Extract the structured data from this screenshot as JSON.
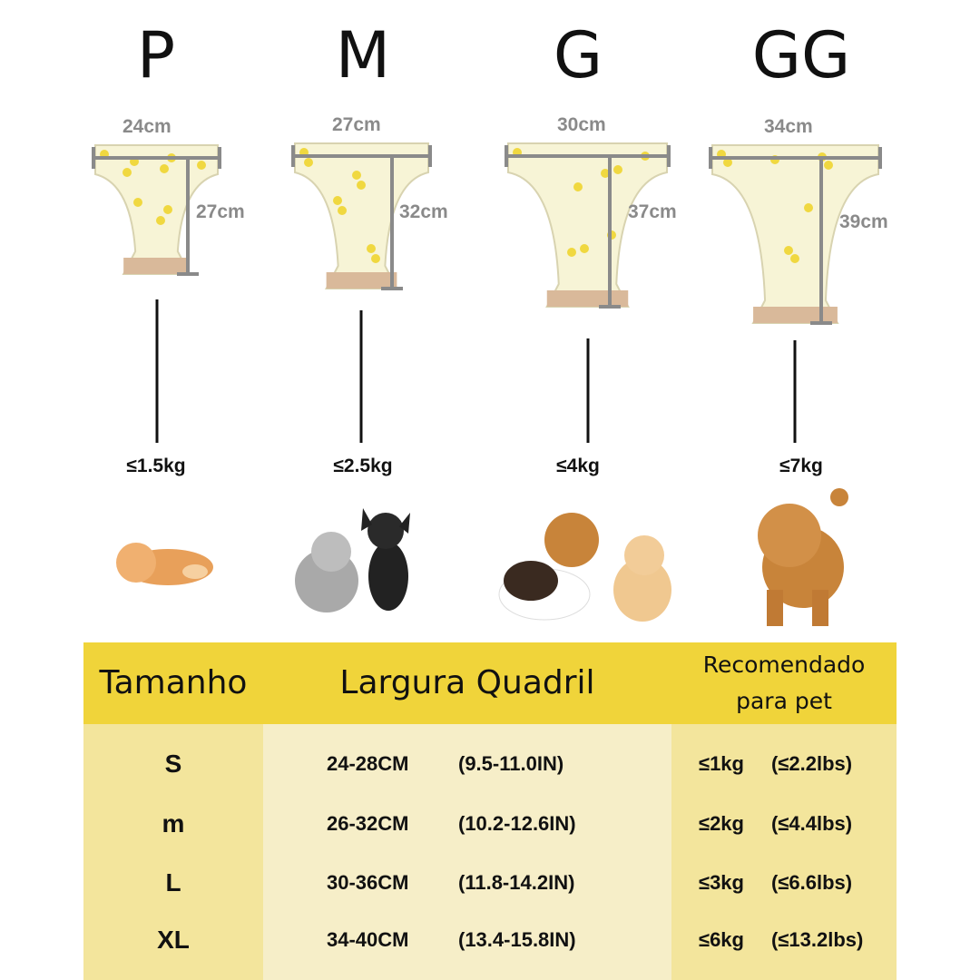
{
  "sizes": [
    {
      "label": "P",
      "width": "24cm",
      "height": "27cm",
      "weight": "≤1.5kg"
    },
    {
      "label": "M",
      "width": "27cm",
      "height": "32cm",
      "weight": "≤2.5kg"
    },
    {
      "label": "G",
      "width": "30cm",
      "height": "37cm",
      "weight": "≤4kg"
    },
    {
      "label": "GG",
      "width": "34cm",
      "height": "39cm",
      "weight": "≤7kg"
    }
  ],
  "table": {
    "header": [
      "Tamanho",
      "Largura Quadril",
      "Recomendado para pet"
    ],
    "rows": [
      [
        "S",
        "24-28CM",
        "(9.5-11.0IN)",
        "≤1kg",
        "(≤2.2lbs)"
      ],
      [
        "m",
        "26-32CM",
        "(10.2-12.6IN)",
        "≤2kg",
        "(≤4.4lbs)"
      ],
      [
        "L",
        "30-36CM",
        "(11.8-14.2IN)",
        "≤3kg",
        "(≤6.6lbs)"
      ],
      [
        "XL",
        "34-40CM",
        "(13.4-15.8IN)",
        "≤6kg",
        "(≤13.2lbs)"
      ]
    ]
  }
}
